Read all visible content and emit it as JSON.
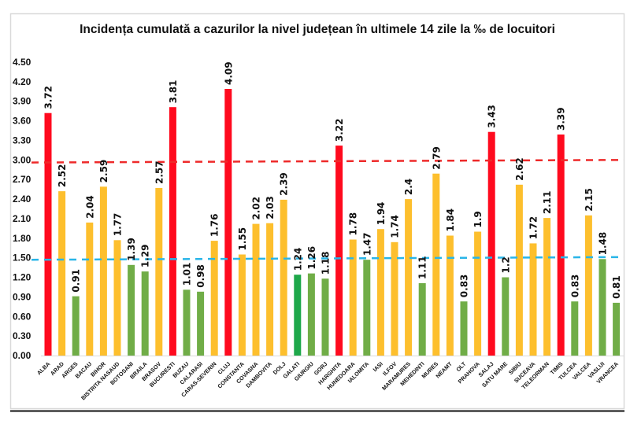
{
  "chart_data": {
    "type": "bar",
    "title": "Incidența cumulată a cazurilor la nivel județean în ultimele 14 zile la ‰ de locuitori",
    "xlabel": "",
    "ylabel": "",
    "ylim": [
      0,
      4.5
    ],
    "yticks": [
      "0.00",
      "0.30",
      "0.60",
      "0.90",
      "1.20",
      "1.50",
      "1.80",
      "2.10",
      "2.40",
      "2.70",
      "3.00",
      "3.30",
      "3.60",
      "3.90",
      "4.20",
      "4.50"
    ],
    "ytick_values": [
      0,
      0.3,
      0.6,
      0.9,
      1.2,
      1.5,
      1.8,
      2.1,
      2.4,
      2.7,
      3.0,
      3.3,
      3.6,
      3.9,
      4.2,
      4.5
    ],
    "grid": false,
    "legend": "none",
    "categories": [
      "ALBA",
      "ARAD",
      "ARGES",
      "BACAU",
      "BIHOR",
      "BISTRITA NASAUD",
      "BOTOSANI",
      "BRAILA",
      "BRASOV",
      "BUCURESTI",
      "BUZAU",
      "CALARASI",
      "CARAS-SEVERIN",
      "CLUJ",
      "CONSTANTA",
      "COVASNA",
      "DAMBOVITA",
      "DOLJ",
      "GALATI",
      "GIURGIU",
      "GORJ",
      "HARGHITA",
      "HUNEDOARA",
      "IALOMITA",
      "IASI",
      "ILFOV",
      "MARAMURES",
      "MEHEDINTI",
      "MURES",
      "NEAMT",
      "OLT",
      "PRAHOVA",
      "SALAJ",
      "SATU MARE",
      "SIBIU",
      "SUCEAVA",
      "TELEORMAN",
      "TIMIS",
      "TULCEA",
      "VALCEA",
      "VASLUI",
      "VRANCEA"
    ],
    "values": [
      3.72,
      2.52,
      0.91,
      2.04,
      2.59,
      1.77,
      1.39,
      1.29,
      2.57,
      3.81,
      1.01,
      0.98,
      1.76,
      4.09,
      1.55,
      2.02,
      2.03,
      2.39,
      1.24,
      1.26,
      1.18,
      3.22,
      1.78,
      1.47,
      1.94,
      1.74,
      2.4,
      1.11,
      2.79,
      1.84,
      0.83,
      1.9,
      3.43,
      1.2,
      2.62,
      1.72,
      2.11,
      3.39,
      0.83,
      2.15,
      1.48,
      0.81
    ],
    "labels": [
      "3.72",
      "2.52",
      "0.91",
      "2.04",
      "2.59",
      "1.77",
      "1.39",
      "1.29",
      "2.57",
      "3.81",
      "1.01",
      "0.98",
      "1.76",
      "4.09",
      "1.55",
      "2.02",
      "2.03",
      "2.39",
      "1.24",
      "1.26",
      "1.18",
      "3.22",
      "1.78",
      "1.47",
      "1.94",
      "1.74",
      "2.4",
      "1.11",
      "2.79",
      "1.84",
      "0.83",
      "1.9",
      "3.43",
      "1.2",
      "2.62",
      "1.72",
      "2.11",
      "3.39",
      "0.83",
      "2.15",
      "1.48",
      "0.81"
    ],
    "bar_colors": [
      "red",
      "yellow",
      "green",
      "yellow",
      "yellow",
      "yellow",
      "green",
      "green",
      "yellow",
      "red",
      "green",
      "green",
      "yellow",
      "red",
      "yellow",
      "yellow",
      "yellow",
      "yellow",
      "darkgreen",
      "green",
      "green",
      "red",
      "yellow",
      "green",
      "yellow",
      "yellow",
      "yellow",
      "green",
      "yellow",
      "yellow",
      "green",
      "yellow",
      "red",
      "green",
      "yellow",
      "yellow",
      "yellow",
      "red",
      "green",
      "yellow",
      "green",
      "green"
    ],
    "palette": {
      "red": "#ff0a1e",
      "yellow": "#fdbf2d",
      "green": "#70ad47",
      "darkgreen": "#1ea84a",
      "red_line": "#ee2a2a",
      "blue_line": "#29b5e8"
    },
    "reference_lines": [
      {
        "name": "red-threshold",
        "color": "#ee2a2a",
        "style": "dashed",
        "start_value": 2.96,
        "end_value": 3.0
      },
      {
        "name": "blue-threshold",
        "color": "#29b5e8",
        "style": "dashed",
        "start_value": 1.47,
        "end_value": 1.51
      }
    ]
  }
}
